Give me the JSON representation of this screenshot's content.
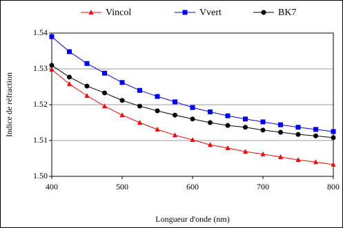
{
  "chart_data": {
    "type": "line",
    "x_label": "Longueur d'onde (nm)",
    "y_label": "Indice de réfraction",
    "x": [
      400,
      425,
      450,
      475,
      500,
      525,
      550,
      575,
      600,
      625,
      650,
      675,
      700,
      725,
      750,
      775,
      800
    ],
    "series": [
      {
        "name": "Vincol",
        "color": "#ff0000",
        "marker": "triangle",
        "values": [
          1.5298,
          1.5258,
          1.5225,
          1.5196,
          1.5171,
          1.515,
          1.5131,
          1.5115,
          1.5102,
          1.5088,
          1.5079,
          1.5069,
          1.5062,
          1.5054,
          1.5046,
          1.504,
          1.5033
        ]
      },
      {
        "name": "Vvert",
        "color": "#0000ff",
        "marker": "square",
        "values": [
          1.539,
          1.5348,
          1.5315,
          1.5288,
          1.5262,
          1.524,
          1.5223,
          1.5208,
          1.5192,
          1.518,
          1.5169,
          1.516,
          1.5152,
          1.5144,
          1.5137,
          1.5131,
          1.5125
        ]
      },
      {
        "name": "BK7",
        "color": "#000000",
        "marker": "circle",
        "values": [
          1.531,
          1.5277,
          1.5252,
          1.5233,
          1.5212,
          1.5196,
          1.5183,
          1.5171,
          1.516,
          1.515,
          1.5142,
          1.5137,
          1.5129,
          1.5123,
          1.5117,
          1.5113,
          1.5108
        ]
      }
    ],
    "xlim": [
      400,
      800
    ],
    "xticks": [
      400,
      500,
      600,
      700,
      800
    ],
    "ylim": [
      1.5,
      1.54
    ],
    "yticks": [
      {
        "value": 1.5,
        "label": "1.50"
      },
      1.51,
      1.52,
      1.53,
      1.54
    ],
    "grid": true,
    "legend": "top"
  }
}
